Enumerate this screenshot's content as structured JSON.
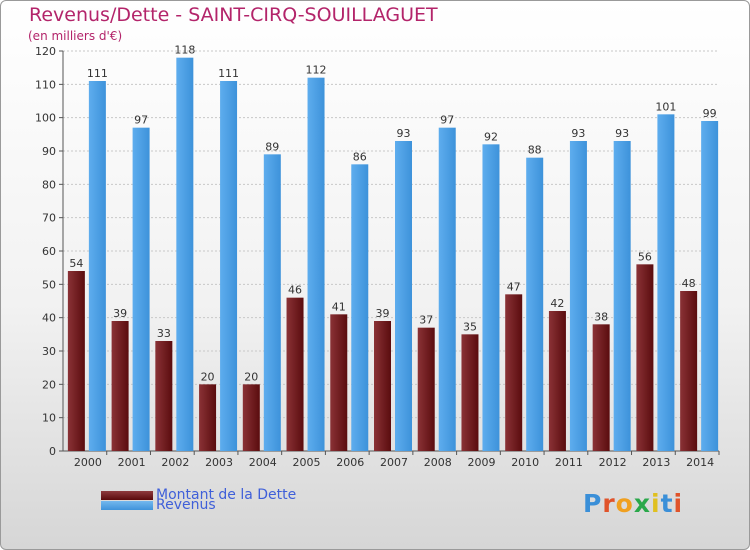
{
  "chart_data": {
    "type": "bar",
    "title": "Revenus/Dette - SAINT-CIRQ-SOUILLAGUET",
    "subtitle": "(en milliers d'€)",
    "xlabel": "",
    "ylabel": "",
    "ylim": [
      0,
      120
    ],
    "yticks": [
      0,
      10,
      20,
      30,
      40,
      50,
      60,
      70,
      80,
      90,
      100,
      110,
      120
    ],
    "grid": true,
    "legend_position": "bottom-left",
    "categories": [
      "2000",
      "2001",
      "2002",
      "2003",
      "2004",
      "2005",
      "2006",
      "2007",
      "2008",
      "2009",
      "2010",
      "2011",
      "2012",
      "2013",
      "2014"
    ],
    "series": [
      {
        "name": "Montant de la Dette",
        "color": "#6b1a1c",
        "values": [
          54,
          39,
          33,
          20,
          20,
          46,
          41,
          39,
          37,
          35,
          47,
          42,
          38,
          56,
          48
        ]
      },
      {
        "name": "Revenus",
        "color": "#4aa0e6",
        "values": [
          111,
          97,
          118,
          111,
          89,
          112,
          86,
          93,
          97,
          92,
          88,
          93,
          93,
          101,
          99
        ]
      }
    ]
  },
  "legend": {
    "debt_label": "Montant de la Dette",
    "revenue_label": "Revenus"
  },
  "brand": {
    "letters": [
      "P",
      "r",
      "o",
      "x",
      "i",
      "t",
      "i"
    ],
    "colors": [
      "#3a8fd8",
      "#e0532a",
      "#f0a020",
      "#2aa84a",
      "#e0c020",
      "#3a8fd8",
      "#e0532a"
    ]
  }
}
